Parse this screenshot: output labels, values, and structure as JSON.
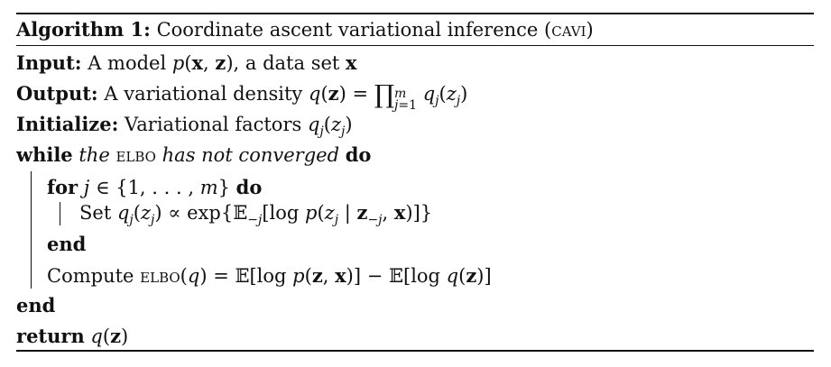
{
  "caption": {
    "label": "Algorithm 1:",
    "title": "Coordinate ascent variational inference (",
    "abbr": "cavi",
    "close": ")"
  },
  "input": {
    "keyword": "Input:",
    "text": "A model",
    "text2": ", a data set"
  },
  "output": {
    "keyword": "Output:",
    "text": "A variational density"
  },
  "initialize": {
    "keyword": "Initialize:",
    "text": "Variational factors"
  },
  "while_line": {
    "keyword": "while",
    "cond_pre": "the",
    "abbr": "elbo",
    "cond_post": "has not converged",
    "do": "do"
  },
  "for_line": {
    "keyword": "for",
    "do": "do"
  },
  "set_line": {
    "keyword": "Set"
  },
  "end_for": "end",
  "compute_line": {
    "keyword": "Compute",
    "abbr": "elbo"
  },
  "end_while": "end",
  "return_line": {
    "keyword": "return"
  }
}
